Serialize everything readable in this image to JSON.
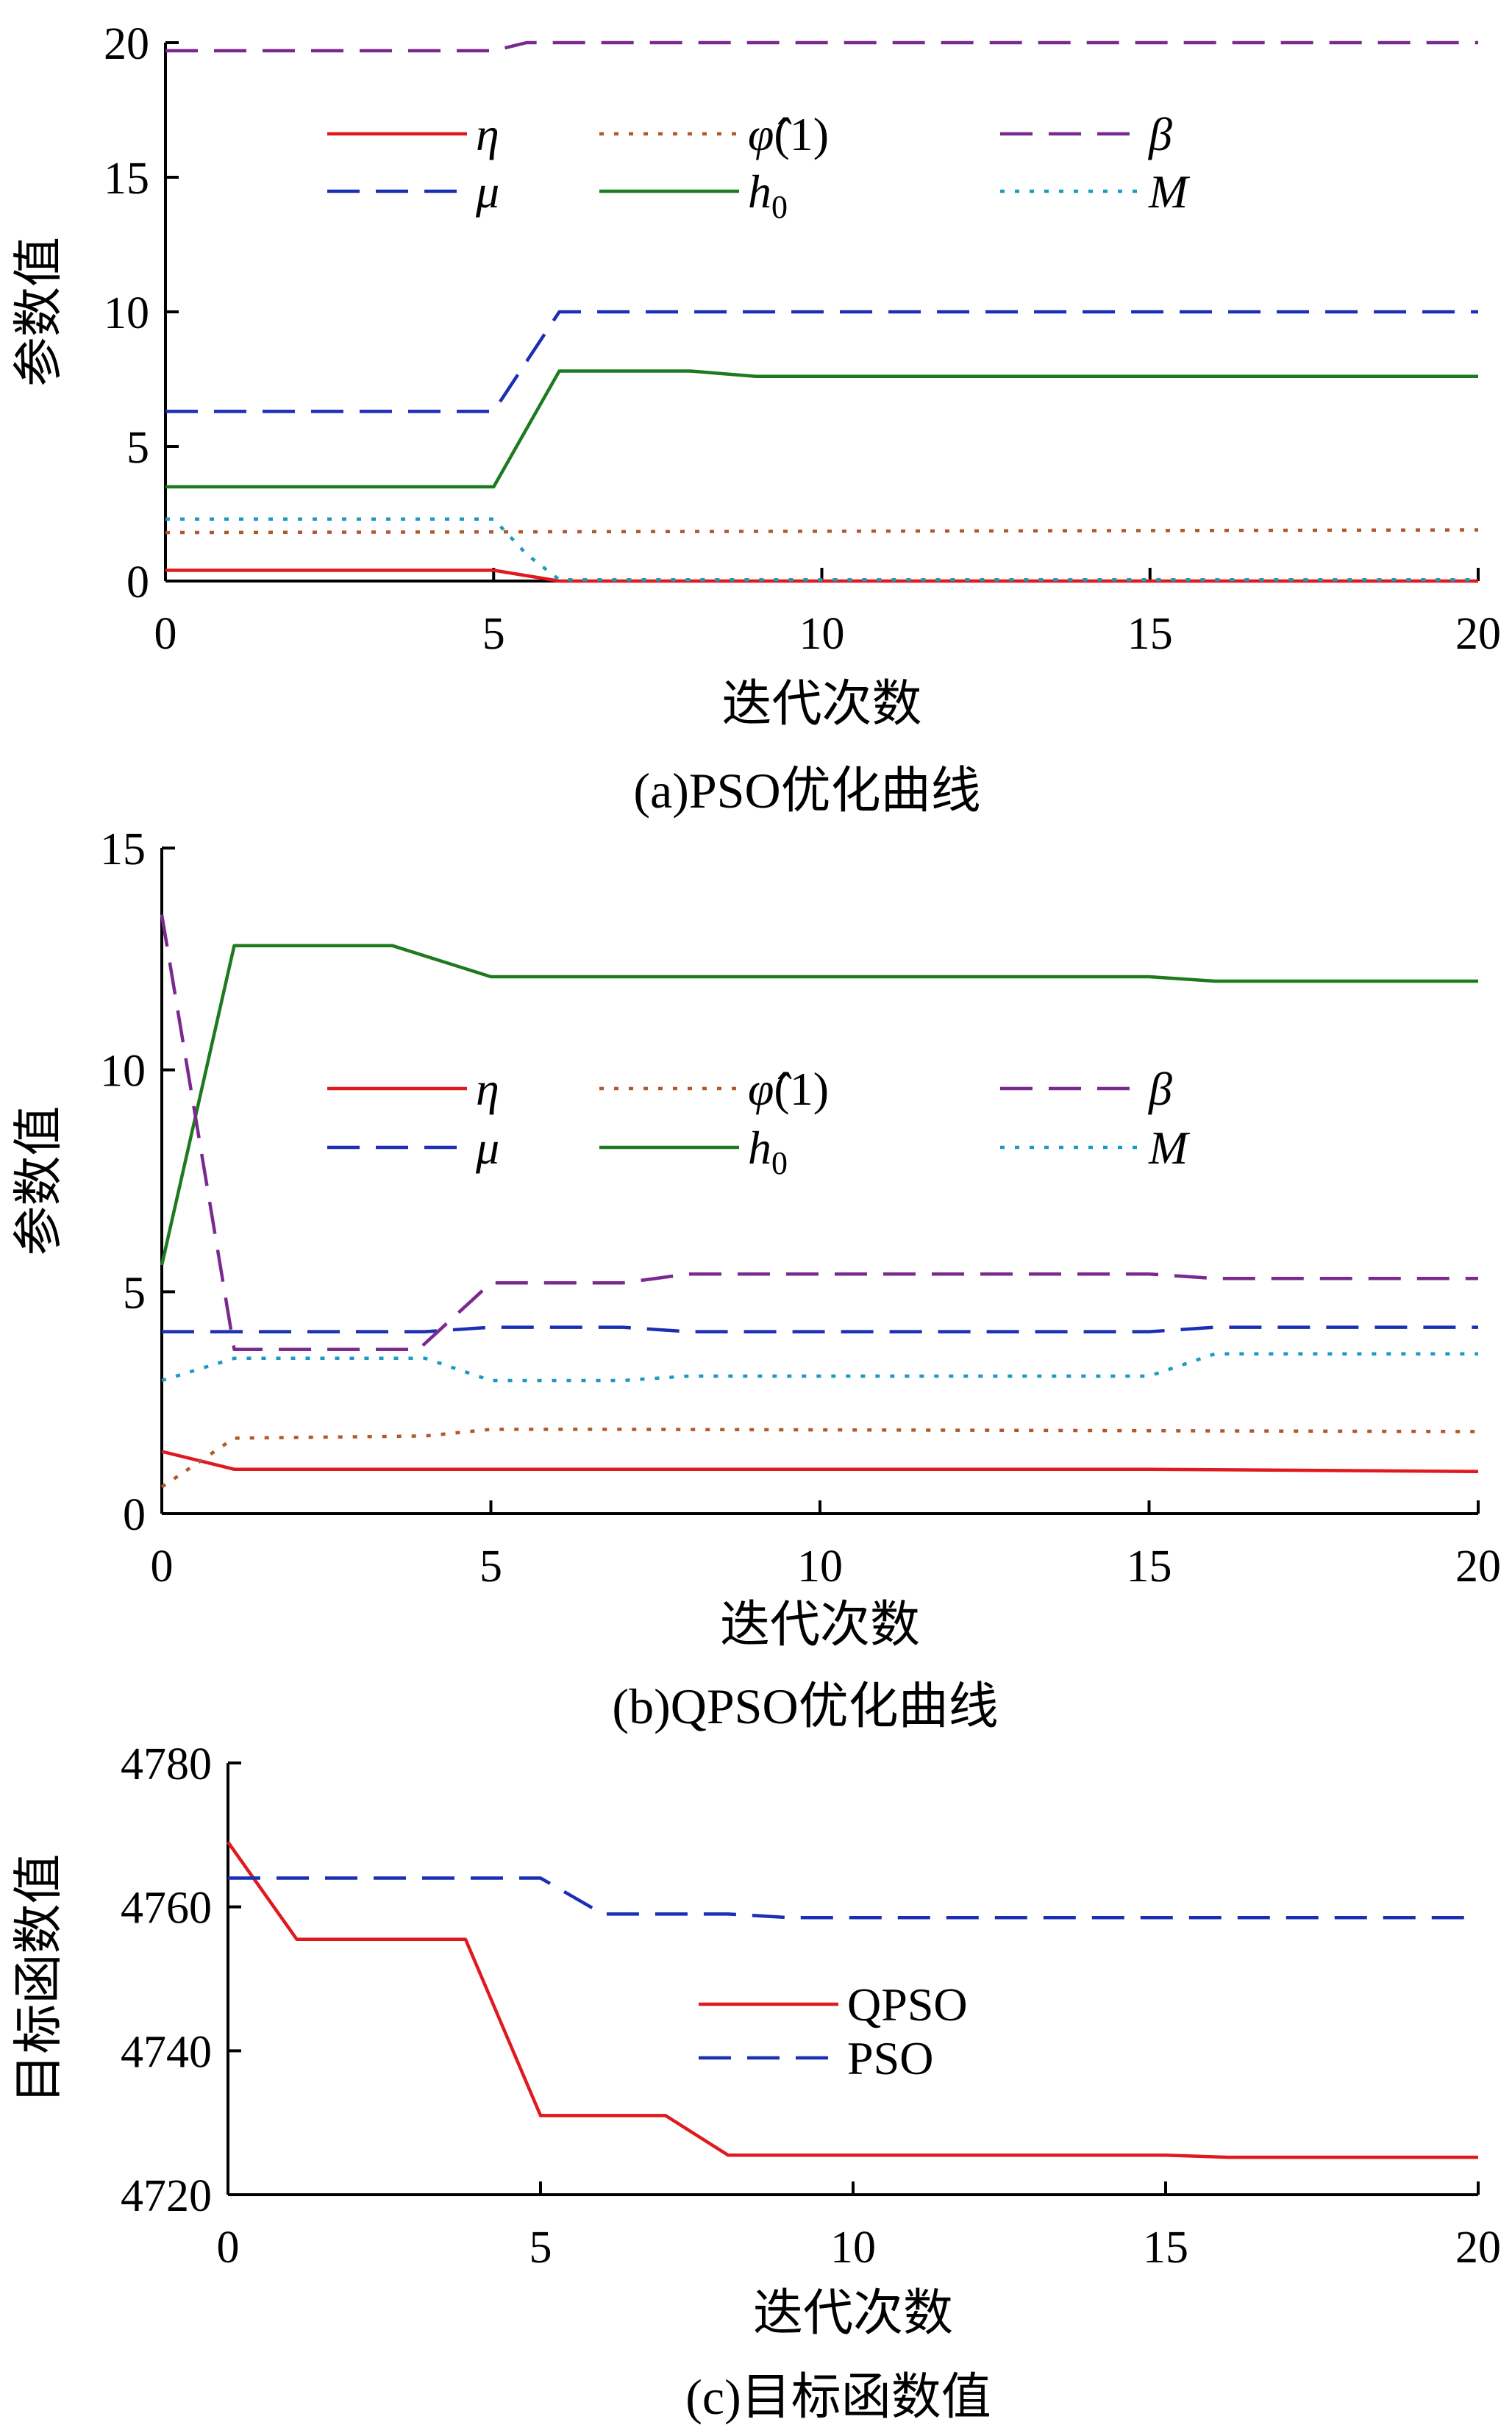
{
  "colors": {
    "red": "#e0191f",
    "brown": "#b05a2a",
    "purple": "#7a2a8e",
    "blue": "#1a2fb4",
    "green": "#1e7a1e",
    "teal": "#1a9ac4"
  },
  "chart_data": [
    {
      "type": "line",
      "caption": "(a)PSO优化曲线",
      "xlabel": "迭代次数",
      "ylabel": "参数值",
      "xlim": [
        0,
        20
      ],
      "ylim": [
        0,
        20
      ],
      "xticks": [
        "0",
        "5",
        "10",
        "15",
        "20"
      ],
      "yticks": [
        "0",
        "5",
        "10",
        "15",
        "20"
      ],
      "legend_placement": "top, 3 columns",
      "series": [
        {
          "name": "η",
          "color": "red",
          "dash": "solid",
          "x": [
            0,
            5,
            6,
            20
          ],
          "y": [
            0.4,
            0.4,
            0.0,
            0.0
          ]
        },
        {
          "name": "μ",
          "color": "blue",
          "dash": "dash",
          "x": [
            0,
            5,
            6,
            20
          ],
          "y": [
            6.3,
            6.3,
            10.0,
            10.0
          ]
        },
        {
          "name": "φ̂(1)",
          "color": "brown",
          "dash": "dot",
          "x": [
            0,
            20
          ],
          "y": [
            1.8,
            1.9
          ]
        },
        {
          "name": "h0",
          "color": "green",
          "dash": "solid",
          "x": [
            0,
            5,
            6,
            8,
            9,
            20
          ],
          "y": [
            3.5,
            3.5,
            7.8,
            7.8,
            7.6,
            7.6
          ]
        },
        {
          "name": "β",
          "color": "purple",
          "dash": "dash",
          "x": [
            0,
            5,
            5.5,
            20
          ],
          "y": [
            19.7,
            19.7,
            20.0,
            20.0
          ]
        },
        {
          "name": "M",
          "color": "teal",
          "dash": "dot",
          "x": [
            0,
            5,
            5.5,
            6,
            20
          ],
          "y": [
            2.3,
            2.3,
            1.0,
            0.05,
            0.05
          ]
        }
      ],
      "legend": [
        {
          "text": "η",
          "color": "red",
          "dash": "solid"
        },
        {
          "text": "φ̂(1)",
          "color": "brown",
          "dash": "dot"
        },
        {
          "text": "β",
          "color": "purple",
          "dash": "dash"
        },
        {
          "text": "μ",
          "color": "blue",
          "dash": "dash"
        },
        {
          "text": "h0",
          "color": "green",
          "dash": "solid"
        },
        {
          "text": "M",
          "color": "teal",
          "dash": "dot"
        }
      ]
    },
    {
      "type": "line",
      "caption": "(b)QPSO优化曲线",
      "xlabel": "迭代次数",
      "ylabel": "参数值",
      "xlim": [
        0,
        20
      ],
      "ylim": [
        0,
        15
      ],
      "xticks": [
        "0",
        "5",
        "10",
        "15",
        "20"
      ],
      "yticks": [
        "0",
        "5",
        "10",
        "15"
      ],
      "legend_placement": "middle, 3 columns",
      "series": [
        {
          "name": "η",
          "color": "red",
          "dash": "solid",
          "x": [
            0,
            1.1,
            5,
            15,
            20
          ],
          "y": [
            1.4,
            1.0,
            1.0,
            1.0,
            0.95
          ]
        },
        {
          "name": "μ",
          "color": "blue",
          "dash": "dash",
          "x": [
            0,
            4,
            5,
            7,
            8,
            15,
            16,
            20
          ],
          "y": [
            4.1,
            4.1,
            4.2,
            4.2,
            4.1,
            4.1,
            4.2,
            4.2
          ]
        },
        {
          "name": "φ̂(1)",
          "color": "brown",
          "dash": "dot",
          "x": [
            0,
            1.1,
            4,
            5,
            7,
            20
          ],
          "y": [
            0.6,
            1.7,
            1.75,
            1.9,
            1.9,
            1.85
          ]
        },
        {
          "name": "h0",
          "color": "green",
          "dash": "solid",
          "x": [
            0,
            1.1,
            3.5,
            5,
            15,
            16,
            20
          ],
          "y": [
            5.6,
            12.8,
            12.8,
            12.1,
            12.1,
            12.0,
            12.0
          ]
        },
        {
          "name": "β",
          "color": "purple",
          "dash": "dash",
          "x": [
            0,
            1.1,
            3.9,
            5,
            7,
            8,
            15,
            16,
            20
          ],
          "y": [
            13.5,
            3.7,
            3.7,
            5.2,
            5.2,
            5.4,
            5.4,
            5.3,
            5.3
          ]
        },
        {
          "name": "M",
          "color": "teal",
          "dash": "dot",
          "x": [
            0,
            1.1,
            4,
            5,
            7,
            8,
            15,
            16,
            20
          ],
          "y": [
            3.0,
            3.5,
            3.5,
            3.0,
            3.0,
            3.1,
            3.1,
            3.6,
            3.6
          ]
        }
      ],
      "legend": [
        {
          "text": "η",
          "color": "red",
          "dash": "solid"
        },
        {
          "text": "φ̂(1)",
          "color": "brown",
          "dash": "dot"
        },
        {
          "text": "β",
          "color": "purple",
          "dash": "dash"
        },
        {
          "text": "μ",
          "color": "blue",
          "dash": "dash"
        },
        {
          "text": "h0",
          "color": "green",
          "dash": "solid"
        },
        {
          "text": "M",
          "color": "teal",
          "dash": "dot"
        }
      ]
    },
    {
      "type": "line",
      "caption": "(c)目标函数值",
      "xlabel": "迭代次数",
      "ylabel": "目标函数值",
      "xlim": [
        0,
        20
      ],
      "ylim": [
        4720,
        4780
      ],
      "xticks": [
        "0",
        "5",
        "10",
        "15",
        "20"
      ],
      "yticks": [
        "4720",
        "4740",
        "4760",
        "4780"
      ],
      "legend_placement": "center-right",
      "series": [
        {
          "name": "QPSO",
          "color": "red",
          "dash": "solid",
          "x": [
            0,
            1.1,
            3.8,
            5,
            7,
            8,
            15,
            16,
            20
          ],
          "y": [
            4769,
            4755.5,
            4755.5,
            4731,
            4731,
            4725.5,
            4725.5,
            4725.2,
            4725.2
          ]
        },
        {
          "name": "PSO",
          "color": "blue",
          "dash": "dash",
          "x": [
            0,
            5,
            6,
            8,
            9,
            20
          ],
          "y": [
            4764,
            4764,
            4759,
            4759,
            4758.5,
            4758.5
          ]
        }
      ],
      "legend": [
        {
          "text": "QPSO",
          "color": "red",
          "dash": "solid"
        },
        {
          "text": "PSO",
          "color": "blue",
          "dash": "dash"
        }
      ]
    }
  ]
}
